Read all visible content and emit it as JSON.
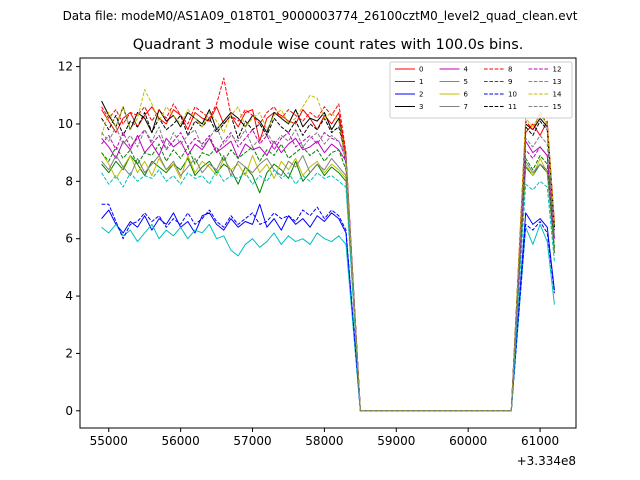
{
  "suptitle": "Data file: modeM0/AS1A09_018T01_9000003774_26100cztM0_level2_quad_clean.evt",
  "chart_data": {
    "type": "line",
    "title": "Quadrant 3 module wise count rates with 100.0s bins.",
    "xlabel": "",
    "ylabel": "",
    "x_offset_label": "+3.334e8",
    "xlim": [
      54600,
      61500
    ],
    "ylim": [
      -0.6,
      12.3
    ],
    "xticks": [
      55000,
      56000,
      57000,
      58000,
      59000,
      60000,
      61000
    ],
    "yticks": [
      0,
      2,
      4,
      6,
      8,
      10,
      12
    ],
    "grid": false,
    "legend": {
      "placement": "top-right",
      "columns": 4
    },
    "segments": [
      {
        "x_start": 54900,
        "x_step": 100,
        "count": 35
      },
      {
        "x_start": 58500,
        "x_step": 100,
        "count": 22
      },
      {
        "x_start": 60800,
        "x_step": 100,
        "count": 5
      }
    ],
    "series": [
      {
        "name": "0",
        "color": "#ff0000",
        "dash": "solid",
        "values": [
          10.5,
          10.1,
          9.7,
          10.2,
          10.4,
          9.9,
          10.3,
          10.6,
          10.2,
          10.0,
          10.5,
          10.3,
          9.8,
          10.4,
          10.2,
          10.1,
          10.6,
          10.0,
          10.3,
          9.9,
          10.4,
          10.5,
          9.4,
          10.2,
          10.4,
          10.3,
          10.1,
          10.0,
          10.5,
          10.2,
          9.8,
          10.3,
          10.0,
          10.4,
          8.9,
          0,
          0,
          0,
          0,
          0,
          0,
          0,
          0,
          0,
          0,
          0,
          0,
          0,
          0,
          0,
          0,
          0,
          0,
          0,
          0,
          0,
          0,
          9.7,
          10.0,
          9.6,
          10.1,
          6.5
        ]
      },
      {
        "name": "1",
        "color": "#008000",
        "dash": "solid",
        "values": [
          8.6,
          8.3,
          8.7,
          8.4,
          8.9,
          8.6,
          8.2,
          8.7,
          8.5,
          8.3,
          8.6,
          8.4,
          8.8,
          8.2,
          8.5,
          8.7,
          8.3,
          8.6,
          8.4,
          7.9,
          8.5,
          8.2,
          7.6,
          8.3,
          8.6,
          8.4,
          8.1,
          8.7,
          8.0,
          8.3,
          8.6,
          8.2,
          8.5,
          8.3,
          8.0,
          0,
          0,
          0,
          0,
          0,
          0,
          0,
          0,
          0,
          0,
          0,
          0,
          0,
          0,
          0,
          0,
          0,
          0,
          0,
          0,
          0,
          0,
          8.5,
          8.2,
          8.6,
          8.3,
          5.5
        ]
      },
      {
        "name": "2",
        "color": "#0000ff",
        "dash": "solid",
        "values": [
          6.7,
          7.0,
          6.5,
          6.2,
          6.6,
          6.4,
          6.8,
          6.3,
          6.7,
          6.5,
          6.9,
          6.4,
          6.6,
          6.2,
          6.8,
          6.9,
          6.5,
          6.3,
          6.7,
          6.4,
          6.6,
          6.5,
          7.2,
          6.4,
          6.7,
          6.3,
          6.8,
          6.5,
          6.7,
          6.4,
          6.8,
          6.6,
          6.9,
          6.7,
          6.2,
          0,
          0,
          0,
          0,
          0,
          0,
          0,
          0,
          0,
          0,
          0,
          0,
          0,
          0,
          0,
          0,
          0,
          0,
          0,
          0,
          0,
          0,
          6.9,
          6.5,
          6.7,
          6.4,
          4.2
        ]
      },
      {
        "name": "3",
        "color": "#000000",
        "dash": "solid",
        "values": [
          10.8,
          10.3,
          9.9,
          10.6,
          9.8,
          10.4,
          10.2,
          9.7,
          10.5,
          10.1,
          10.3,
          9.9,
          10.4,
          10.2,
          10.0,
          10.5,
          9.8,
          10.1,
          10.4,
          10.2,
          9.9,
          10.3,
          10.1,
          9.7,
          10.4,
          10.2,
          10.0,
          10.5,
          9.9,
          10.2,
          10.1,
          10.4,
          9.8,
          10.2,
          8.6,
          0,
          0,
          0,
          0,
          0,
          0,
          0,
          0,
          0,
          0,
          0,
          0,
          0,
          0,
          0,
          0,
          0,
          0,
          0,
          0,
          0,
          0,
          10.0,
          9.8,
          10.2,
          9.9,
          6.4
        ]
      },
      {
        "name": "4",
        "color": "#c000c0",
        "dash": "solid",
        "values": [
          9.5,
          9.2,
          8.8,
          9.4,
          9.1,
          9.6,
          9.0,
          9.3,
          8.9,
          9.5,
          9.2,
          9.4,
          8.9,
          9.3,
          9.1,
          9.5,
          9.0,
          9.2,
          9.4,
          8.8,
          9.3,
          9.1,
          9.2,
          8.9,
          9.4,
          9.0,
          9.3,
          9.5,
          9.1,
          9.2,
          9.4,
          9.0,
          9.3,
          9.1,
          8.7,
          0,
          0,
          0,
          0,
          0,
          0,
          0,
          0,
          0,
          0,
          0,
          0,
          0,
          0,
          0,
          0,
          0,
          0,
          0,
          0,
          0,
          0,
          9.4,
          9.0,
          9.2,
          8.9,
          6.0
        ]
      },
      {
        "name": "5",
        "color": "#00bfbf",
        "dash": "solid",
        "values": [
          6.4,
          6.2,
          6.5,
          6.1,
          6.3,
          5.9,
          6.2,
          6.5,
          6.0,
          6.3,
          6.1,
          6.4,
          6.0,
          6.3,
          6.2,
          6.5,
          6.0,
          6.1,
          5.6,
          5.4,
          5.8,
          6.0,
          5.7,
          5.9,
          6.2,
          5.8,
          6.1,
          5.9,
          6.0,
          5.8,
          6.2,
          6.0,
          5.9,
          6.1,
          5.8,
          0,
          0,
          0,
          0,
          0,
          0,
          0,
          0,
          0,
          0,
          0,
          0,
          0,
          0,
          0,
          0,
          0,
          0,
          0,
          0,
          0,
          0,
          6.4,
          5.8,
          6.5,
          5.9,
          3.7
        ]
      },
      {
        "name": "6",
        "color": "#bfbf00",
        "dash": "solid",
        "values": [
          9.0,
          8.6,
          8.1,
          8.5,
          8.9,
          8.3,
          8.7,
          8.2,
          8.8,
          8.4,
          8.6,
          8.1,
          8.9,
          8.3,
          8.7,
          8.5,
          8.2,
          8.8,
          8.4,
          8.6,
          8.2,
          8.9,
          8.3,
          8.6,
          8.1,
          8.7,
          8.4,
          8.8,
          8.2,
          8.5,
          8.7,
          8.3,
          8.6,
          8.4,
          8.1,
          0,
          0,
          0,
          0,
          0,
          0,
          0,
          0,
          0,
          0,
          0,
          0,
          0,
          0,
          0,
          0,
          0,
          0,
          0,
          0,
          0,
          0,
          8.6,
          8.2,
          8.8,
          8.3,
          5.6
        ]
      },
      {
        "name": "7",
        "color": "#808080",
        "dash": "solid",
        "values": [
          8.7,
          8.4,
          8.9,
          8.5,
          8.2,
          8.8,
          8.3,
          8.6,
          8.9,
          8.4,
          8.7,
          8.2,
          8.5,
          8.8,
          8.3,
          8.6,
          8.4,
          8.9,
          8.2,
          8.7,
          8.5,
          8.3,
          8.6,
          8.8,
          8.4,
          8.2,
          8.7,
          8.5,
          8.9,
          8.3,
          8.6,
          8.4,
          8.8,
          8.5,
          8.2,
          0,
          0,
          0,
          0,
          0,
          0,
          0,
          0,
          0,
          0,
          0,
          0,
          0,
          0,
          0,
          0,
          0,
          0,
          0,
          0,
          0,
          0,
          8.7,
          8.3,
          8.6,
          8.4,
          5.6
        ]
      },
      {
        "name": "8",
        "color": "#ff0000",
        "dash": "dashed",
        "values": [
          10.6,
          10.2,
          10.5,
          10.0,
          10.4,
          10.3,
          10.6,
          10.1,
          10.5,
          10.2,
          10.7,
          10.3,
          10.0,
          10.6,
          10.4,
          10.2,
          10.7,
          11.6,
          10.3,
          10.1,
          10.5,
          10.3,
          10.0,
          10.4,
          10.6,
          10.2,
          10.5,
          10.3,
          10.1,
          10.4,
          10.2,
          10.6,
          10.3,
          10.7,
          9.0,
          0,
          0,
          0,
          0,
          0,
          0,
          0,
          0,
          0,
          0,
          0,
          0,
          0,
          0,
          0,
          0,
          0,
          0,
          0,
          0,
          0,
          0,
          10.1,
          9.8,
          10.4,
          10.0,
          6.6
        ]
      },
      {
        "name": "9",
        "color": "#008000",
        "dash": "dashed",
        "values": [
          9.0,
          8.7,
          9.2,
          8.8,
          9.1,
          8.6,
          9.0,
          8.9,
          9.3,
          8.7,
          9.1,
          8.8,
          9.2,
          8.6,
          9.0,
          8.9,
          9.2,
          8.7,
          9.1,
          8.8,
          9.0,
          9.2,
          8.7,
          9.1,
          8.9,
          9.3,
          8.8,
          9.0,
          9.2,
          8.9,
          9.1,
          8.7,
          9.0,
          9.1,
          8.4,
          0,
          0,
          0,
          0,
          0,
          0,
          0,
          0,
          0,
          0,
          0,
          0,
          0,
          0,
          0,
          0,
          0,
          0,
          0,
          0,
          0,
          0,
          8.8,
          8.4,
          8.9,
          8.6,
          5.7
        ]
      },
      {
        "name": "10",
        "color": "#0000ff",
        "dash": "dashed",
        "values": [
          7.2,
          7.2,
          6.6,
          6.0,
          6.5,
          6.6,
          6.9,
          6.6,
          6.8,
          6.4,
          6.7,
          6.5,
          6.9,
          6.5,
          6.7,
          7.0,
          6.6,
          6.4,
          6.8,
          6.5,
          6.7,
          6.9,
          6.5,
          6.6,
          6.9,
          6.7,
          6.8,
          6.6,
          7.0,
          6.8,
          7.1,
          6.7,
          7.0,
          6.8,
          6.3,
          0,
          0,
          0,
          0,
          0,
          0,
          0,
          0,
          0,
          0,
          0,
          0,
          0,
          0,
          0,
          0,
          0,
          0,
          0,
          0,
          0,
          0,
          6.5,
          6.3,
          6.6,
          6.2,
          4.1
        ]
      },
      {
        "name": "11",
        "color": "#000000",
        "dash": "dashed",
        "values": [
          10.2,
          9.8,
          10.3,
          9.6,
          10.1,
          9.9,
          10.4,
          9.7,
          10.2,
          9.8,
          10.0,
          10.3,
          9.6,
          10.1,
          9.9,
          10.2,
          9.7,
          10.0,
          10.3,
          9.5,
          10.1,
          9.8,
          10.0,
          9.6,
          10.2,
          9.9,
          9.7,
          10.1,
          9.6,
          10.0,
          9.8,
          10.2,
          9.7,
          9.9,
          8.8,
          0,
          0,
          0,
          0,
          0,
          0,
          0,
          0,
          0,
          0,
          0,
          0,
          0,
          0,
          0,
          0,
          0,
          0,
          0,
          0,
          0,
          0,
          9.9,
          9.6,
          10.1,
          9.8,
          6.3
        ]
      },
      {
        "name": "12",
        "color": "#c000c0",
        "dash": "dashed",
        "values": [
          9.3,
          9.6,
          9.1,
          9.7,
          9.2,
          9.5,
          9.8,
          9.3,
          9.6,
          9.1,
          9.4,
          9.7,
          9.2,
          9.5,
          9.3,
          9.6,
          9.0,
          9.4,
          9.7,
          9.2,
          9.5,
          9.8,
          9.3,
          9.6,
          9.1,
          9.5,
          9.7,
          9.2,
          9.4,
          9.6,
          9.3,
          9.7,
          9.5,
          9.4,
          8.8,
          0,
          0,
          0,
          0,
          0,
          0,
          0,
          0,
          0,
          0,
          0,
          0,
          0,
          0,
          0,
          0,
          0,
          0,
          0,
          0,
          0,
          0,
          9.1,
          8.8,
          9.2,
          8.9,
          6.0
        ]
      },
      {
        "name": "13",
        "color": "#00bfbf",
        "dash": "dashed",
        "values": [
          8.3,
          7.9,
          8.2,
          7.8,
          8.3,
          8.0,
          8.2,
          8.1,
          8.4,
          8.0,
          8.2,
          7.9,
          8.3,
          8.1,
          8.2,
          7.9,
          8.4,
          8.0,
          8.2,
          8.1,
          8.3,
          7.9,
          8.2,
          8.0,
          8.4,
          8.1,
          8.3,
          7.9,
          8.2,
          8.0,
          8.3,
          8.1,
          8.2,
          8.0,
          7.8,
          0,
          0,
          0,
          0,
          0,
          0,
          0,
          0,
          0,
          0,
          0,
          0,
          0,
          0,
          0,
          0,
          0,
          0,
          0,
          0,
          0,
          0,
          7.9,
          7.7,
          8.0,
          7.8,
          5.2
        ]
      },
      {
        "name": "14",
        "color": "#bfbf00",
        "dash": "dashed",
        "values": [
          9.6,
          10.4,
          9.9,
          10.6,
          9.8,
          10.2,
          11.2,
          10.7,
          10.1,
          10.6,
          10.3,
          10.0,
          10.5,
          10.2,
          9.9,
          10.4,
          10.1,
          9.7,
          10.3,
          10.6,
          9.9,
          10.2,
          10.4,
          9.8,
          10.3,
          10.5,
          10.0,
          10.2,
          10.6,
          11.0,
          10.9,
          10.2,
          10.4,
          10.1,
          8.7,
          0,
          0,
          0,
          0,
          0,
          0,
          0,
          0,
          0,
          0,
          0,
          0,
          0,
          0,
          0,
          0,
          0,
          0,
          0,
          0,
          0,
          0,
          10.2,
          9.9,
          10.3,
          10.0,
          6.5
        ]
      },
      {
        "name": "15",
        "color": "#808080",
        "dash": "dashed",
        "values": [
          9.7,
          9.4,
          9.9,
          9.3,
          9.6,
          9.2,
          9.8,
          9.4,
          9.9,
          9.1,
          9.7,
          9.3,
          9.6,
          9.8,
          9.2,
          9.5,
          9.9,
          9.3,
          9.6,
          9.4,
          9.8,
          9.2,
          9.5,
          9.7,
          9.3,
          9.6,
          9.4,
          9.8,
          9.2,
          9.5,
          9.7,
          9.3,
          9.6,
          9.4,
          8.9,
          0,
          0,
          0,
          0,
          0,
          0,
          0,
          0,
          0,
          0,
          0,
          0,
          0,
          0,
          0,
          0,
          0,
          0,
          0,
          0,
          0,
          0,
          9.5,
          9.2,
          9.6,
          9.3,
          6.1
        ]
      }
    ]
  }
}
